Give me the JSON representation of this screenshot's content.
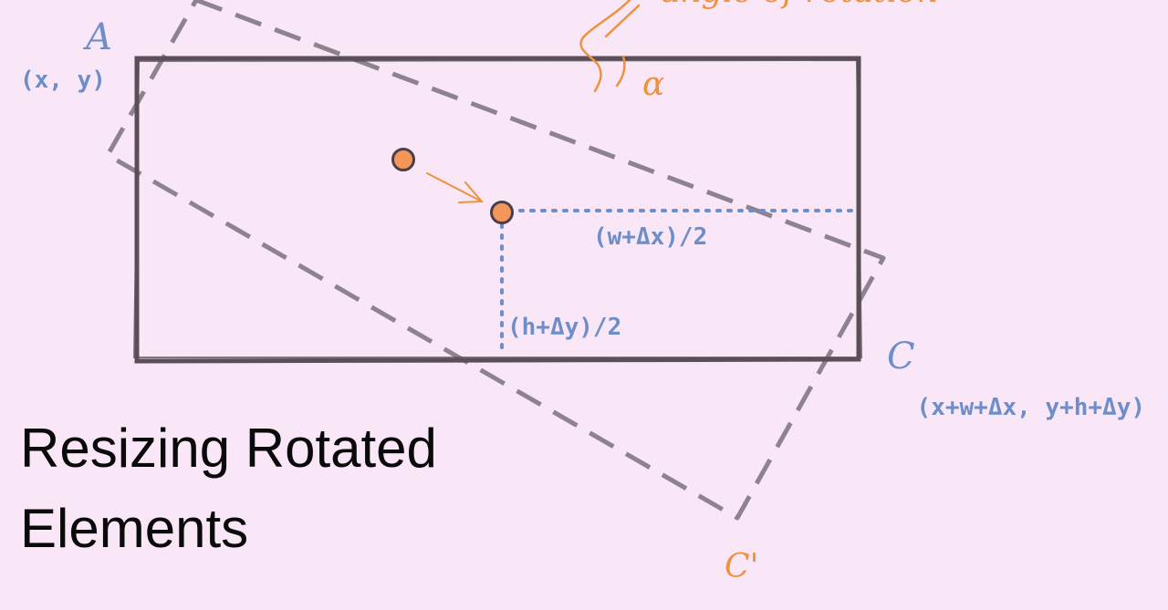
{
  "title": "Resizing Rotated Elements",
  "labels": {
    "corner_a_letter": "A",
    "corner_a_coords": "(x, y)",
    "corner_c_letter": "C",
    "corner_c_coords": "(x+w+Δx, y+h+Δy)",
    "corner_c_prime": "C'",
    "half_width": "(w+Δx)/2",
    "half_height": "(h+Δy)/2",
    "alpha": "α",
    "angle_note": "angle of rotation"
  },
  "colors": {
    "background": "#f9e6f7",
    "rect_stroke": "#5a4e58",
    "rotated_stroke": "#8d8290",
    "annotation_blue": "#6d8ec9",
    "annotation_orange": "#f0913c",
    "title_text": "#0a0a0a"
  }
}
